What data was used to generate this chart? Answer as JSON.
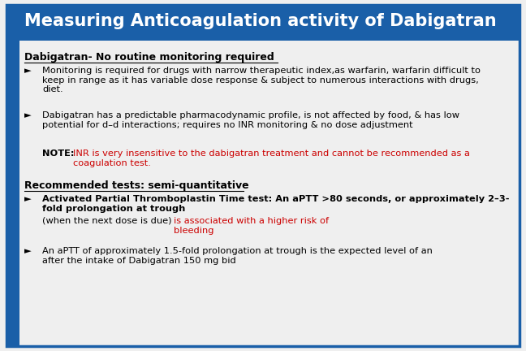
{
  "title": "Measuring Anticoagulation activity of Dabigatran",
  "title_bg": "#1a5fa8",
  "title_color": "#ffffff",
  "title_fontsize": 15,
  "bg_color": "#efefef",
  "border_color": "#1a5fa8",
  "text_color": "#000000",
  "red_color": "#cc0000",
  "body_fontsize": 8.2,
  "heading_fontsize": 9.0,
  "arrow": "►",
  "heading1": "Dabigatran- No routine monitoring required",
  "heading2": "Recommended tests: semi-quantitative",
  "bullet1": "Monitoring is required for drugs with narrow therapeutic index,as warfarin, warfarin difficult to\nkeep in range as it has variable dose response & subject to numerous interactions with drugs,\ndiet.",
  "bullet2": "Dabigatran has a predictable pharmacodynamic profile, is not affected by food, & has low\npotential for d–d interactions; requires no INR monitoring & no dose adjustment",
  "note_bold": "NOTE: ",
  "note_red": "INR is very insensitive to the dabigatran treatment and cannot be recommended as a\ncoagulation test.",
  "bullet3_bold": "Activated Partial Thromboplastin Time test: An aPTT >80 seconds, or approximately 2–3-\nfold prolongation at trough ",
  "bullet3_normal": "(when the next dose is due) ",
  "bullet3_red": "is associated with a higher risk of\nbleeding",
  "bullet4": "An aPTT of approximately 1.5-fold prolongation at trough is the expected level of an\nafter the intake of Dabigatran 150 mg bid"
}
